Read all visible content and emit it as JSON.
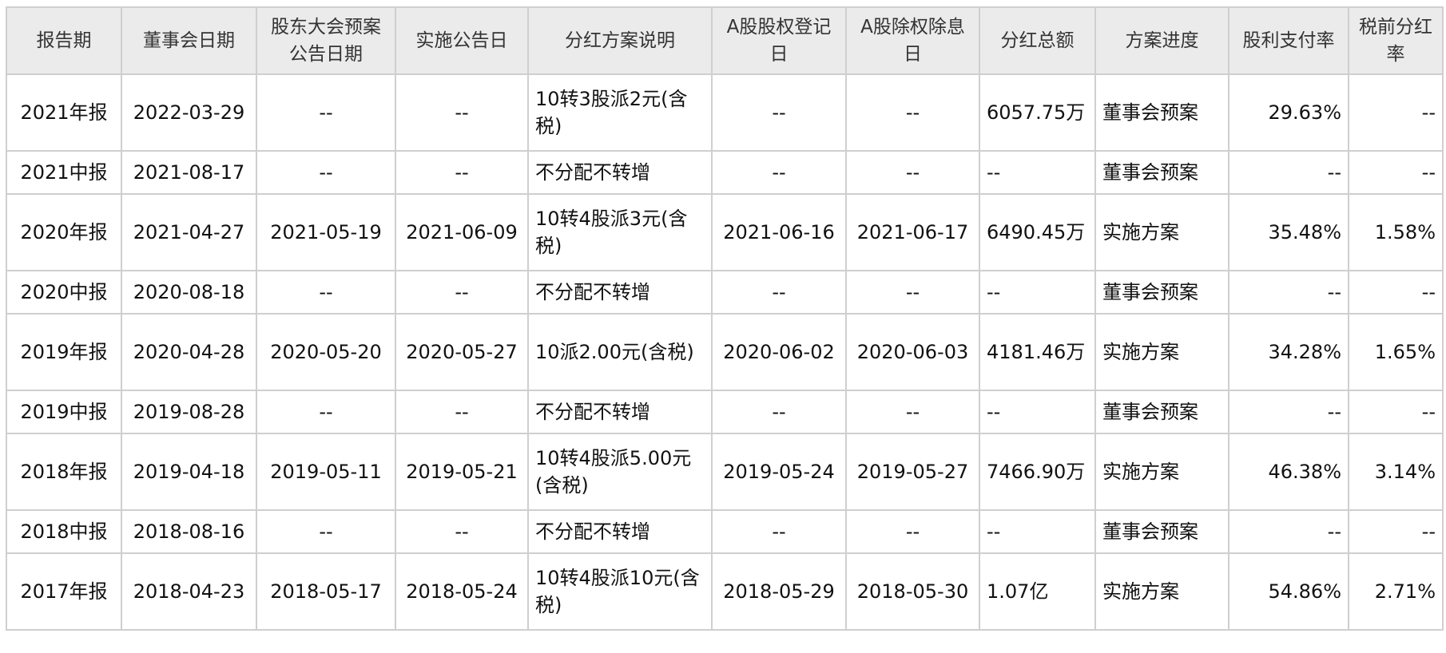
{
  "headers": [
    "报告期",
    "董事会日期",
    "股东大会预案公告日期",
    "实施公告日",
    "分红方案说明",
    "A股股权登记日",
    "A股除权除息日",
    "分红总额",
    "方案进度",
    "股利支付率",
    "税前分红率"
  ],
  "rows": [
    [
      "2021年报",
      "2022-03-29",
      "--",
      "--",
      "10转3股派2元(含税)",
      "--",
      "--",
      "6057.75万",
      "董事会预案",
      "29.63%",
      "--"
    ],
    [
      "2021中报",
      "2021-08-17",
      "--",
      "--",
      "不分配不转增",
      "--",
      "--",
      "--",
      "董事会预案",
      "--",
      "--"
    ],
    [
      "2020年报",
      "2021-04-27",
      "2021-05-19",
      "2021-06-09",
      "10转4股派3元(含税)",
      "2021-06-16",
      "2021-06-17",
      "6490.45万",
      "实施方案",
      "35.48%",
      "1.58%"
    ],
    [
      "2020中报",
      "2020-08-18",
      "--",
      "--",
      "不分配不转增",
      "--",
      "--",
      "--",
      "董事会预案",
      "--",
      "--"
    ],
    [
      "2019年报",
      "2020-04-28",
      "2020-05-20",
      "2020-05-27",
      "10派2.00元(含税)",
      "2020-06-02",
      "2020-06-03",
      "4181.46万",
      "实施方案",
      "34.28%",
      "1.65%"
    ],
    [
      "2019中报",
      "2019-08-28",
      "--",
      "--",
      "不分配不转增",
      "--",
      "--",
      "--",
      "董事会预案",
      "--",
      "--"
    ],
    [
      "2018年报",
      "2019-04-18",
      "2019-05-11",
      "2019-05-21",
      "10转4股派5.00元(含税)",
      "2019-05-24",
      "2019-05-27",
      "7466.90万",
      "实施方案",
      "46.38%",
      "3.14%"
    ],
    [
      "2018中报",
      "2018-08-16",
      "--",
      "--",
      "不分配不转增",
      "--",
      "--",
      "--",
      "董事会预案",
      "--",
      "--"
    ],
    [
      "2017年报",
      "2018-04-23",
      "2018-05-17",
      "2018-05-24",
      "10转4股派10元(含税)",
      "2018-05-29",
      "2018-05-30",
      "1.07亿",
      "实施方案",
      "54.86%",
      "2.71%"
    ]
  ]
}
